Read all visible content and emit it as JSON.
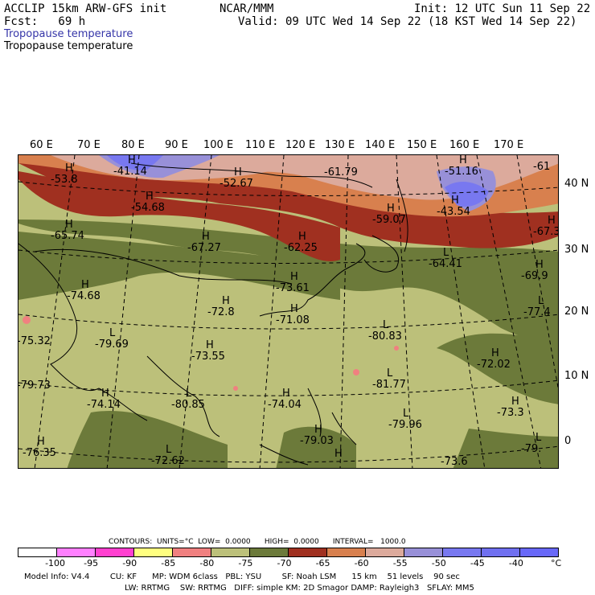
{
  "header": {
    "left1": "ACCLIP 15km ARW-GFS init",
    "left2": "Fcst:   69 h",
    "center": "NCAR/MMM",
    "right1": "Init: 12 UTC Sun 11 Sep 22",
    "right2": "Valid: 09 UTC Wed 14 Sep 22 (18 KST Wed 14 Sep 22)",
    "field_blue": "Tropopause temperature",
    "field_black": "Tropopause temperature"
  },
  "longitude_labels": [
    "60 E",
    "70 E",
    "80 E",
    "90 E",
    "100 E",
    "110 E",
    "120 E",
    "130 E",
    "140 E",
    "150 E",
    "160 E",
    "170 E"
  ],
  "latitude_labels": [
    "40 N",
    "30 N",
    "20 N",
    "10 N",
    "0"
  ],
  "map_labels": [
    {
      "mark": "H",
      "value": "-53.8"
    },
    {
      "mark": "H",
      "value": "-41.14"
    },
    {
      "mark": "H",
      "value": "-54.68"
    },
    {
      "mark": "H",
      "value": "-52.67"
    },
    {
      "mark": "",
      "value": "-61.79"
    },
    {
      "mark": "H",
      "value": "-51.16"
    },
    {
      "mark": "",
      "value": "-61"
    },
    {
      "mark": "H",
      "value": "-65.74"
    },
    {
      "mark": "H",
      "value": "-67.27"
    },
    {
      "mark": "H",
      "value": "-62.25"
    },
    {
      "mark": "H",
      "value": "-59.07"
    },
    {
      "mark": "H",
      "value": "-43.54"
    },
    {
      "mark": "H",
      "value": "-67.3"
    },
    {
      "mark": "L",
      "value": "-64.41"
    },
    {
      "mark": "H",
      "value": "-73.61"
    },
    {
      "mark": "H",
      "value": "-69.9"
    },
    {
      "mark": "H",
      "value": "-74.68"
    },
    {
      "mark": "H",
      "value": "-72.8"
    },
    {
      "mark": "H",
      "value": "-71.08"
    },
    {
      "mark": "L",
      "value": "-80.83"
    },
    {
      "mark": "L",
      "value": "-77.4"
    },
    {
      "mark": "L",
      "value": "-79.69"
    },
    {
      "mark": "",
      "value": "-75.32"
    },
    {
      "mark": "H",
      "value": "-73.55"
    },
    {
      "mark": "H",
      "value": "-72.02"
    },
    {
      "mark": "L",
      "value": "-81.77"
    },
    {
      "mark": "",
      "value": "-79.73"
    },
    {
      "mark": "H",
      "value": "-74.14"
    },
    {
      "mark": "L",
      "value": "-80.85"
    },
    {
      "mark": "H",
      "value": "-74.04"
    },
    {
      "mark": "H",
      "value": "-73.3"
    },
    {
      "mark": "L",
      "value": "-79.96"
    },
    {
      "mark": "H",
      "value": "-76.35"
    },
    {
      "mark": "L",
      "value": "-72.62"
    },
    {
      "mark": "H",
      "value": "-79.03"
    },
    {
      "mark": "L",
      "value": "-79."
    },
    {
      "mark": "H",
      "value": ""
    },
    {
      "mark": "",
      "value": "-73.6"
    }
  ],
  "footer": {
    "contours": "CONTOURS:  UNITS=°C  LOW=  0.0000      HIGH=  0.0000      INTERVAL=   1000.0",
    "colorbar_colors": [
      "#ffffff",
      "#ff80ff",
      "#ff40d0",
      "#ffff80",
      "#f08080",
      "#bcc07a",
      "#6c7a3a",
      "#a03020",
      "#d8804e",
      "#dcaa9c",
      "#9890d8",
      "#7878f0",
      "#7070f0",
      "#6868f8"
    ],
    "colorbar_ticks": [
      "-100",
      "-95",
      "-90",
      "-85",
      "-80",
      "-75",
      "-70",
      "-65",
      "-60",
      "-55",
      "-50",
      "-45",
      "-40",
      "°C"
    ],
    "model_info1": "Model Info: V4.4        CU: KF      MP: WDM 6class   PBL: YSU        SF: Noah LSM      15 km    51 levels    90 sec",
    "model_info2": "LW: RRTMG    SW: RRTMG   DIFF: simple KM: 2D Smagor DAMP: Rayleigh3   SFLAY: MM5"
  }
}
